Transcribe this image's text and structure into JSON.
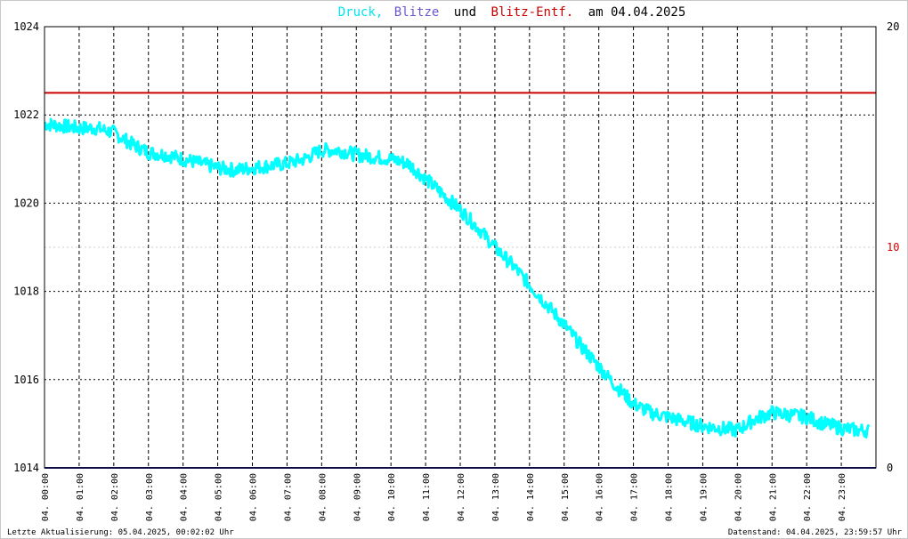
{
  "chart_data": {
    "type": "line",
    "title": {
      "parts": [
        {
          "text": "Druck,",
          "color": "#00e5ee"
        },
        {
          "text": "Blitze",
          "color": "#6a5acd"
        },
        {
          "text": "und",
          "color": "#000000"
        },
        {
          "text": "Blitz-Entf.",
          "color": "#cc0000"
        },
        {
          "text": "am 04.04.2025",
          "color": "#000000"
        }
      ]
    },
    "y_left": {
      "ticks": [
        "1014",
        "1016",
        "1018",
        "1020",
        "1022",
        "1024"
      ],
      "ylim": [
        1014,
        1024
      ]
    },
    "y_right": {
      "ticks": [
        "0",
        "10",
        "20"
      ],
      "ylim": [
        0,
        20
      ],
      "tick_colors": [
        "#000000",
        "#cc0000",
        "#000000"
      ]
    },
    "x_tick_labels": [
      "04. 00:00",
      "04. 01:00",
      "04. 02:00",
      "04. 03:00",
      "04. 04:00",
      "04. 05:00",
      "04. 06:00",
      "04. 07:00",
      "04. 08:00",
      "04. 09:00",
      "04. 10:00",
      "04. 11:00",
      "04. 12:00",
      "04. 13:00",
      "04. 14:00",
      "04. 15:00",
      "04. 16:00",
      "04. 17:00",
      "04. 18:00",
      "04. 19:00",
      "04. 20:00",
      "04. 21:00",
      "04. 22:00",
      "04. 23:00"
    ],
    "xlim_hours": [
      0,
      24
    ],
    "grid": true,
    "series": [
      {
        "name": "Druck",
        "color": "#00ffff",
        "x_hours": [
          0,
          0.5,
          1,
          1.5,
          2,
          2.5,
          3,
          3.5,
          4,
          4.5,
          5,
          5.5,
          6,
          6.5,
          7,
          7.5,
          8,
          8.5,
          9,
          9.5,
          10,
          10.5,
          11,
          11.5,
          12,
          12.5,
          13,
          13.5,
          14,
          14.5,
          15,
          15.5,
          16,
          16.5,
          17,
          17.5,
          18,
          18.5,
          19,
          19.5,
          20,
          20.5,
          21,
          21.5,
          22,
          22.5,
          23,
          23.5,
          23.8
        ],
        "values": [
          1021.8,
          1021.75,
          1021.7,
          1021.7,
          1021.6,
          1021.35,
          1021.15,
          1021.1,
          1021.0,
          1020.9,
          1020.8,
          1020.75,
          1020.8,
          1020.85,
          1020.9,
          1021.0,
          1021.2,
          1021.2,
          1021.1,
          1021.05,
          1021.0,
          1020.9,
          1020.55,
          1020.2,
          1019.85,
          1019.45,
          1019.0,
          1018.6,
          1018.15,
          1017.7,
          1017.25,
          1016.75,
          1016.3,
          1015.85,
          1015.45,
          1015.25,
          1015.15,
          1015.05,
          1014.95,
          1014.9,
          1014.85,
          1015.1,
          1015.25,
          1015.2,
          1015.15,
          1015.0,
          1014.9,
          1014.85,
          1014.85
        ]
      },
      {
        "name": "Blitze",
        "color": "#1a1a8c",
        "x_hours": [
          0,
          24
        ],
        "values_right": [
          0,
          0
        ]
      },
      {
        "name": "Blitz-Entf.",
        "color": "#cc0000",
        "x_hours": [
          0,
          24
        ],
        "values_right": [
          17,
          17
        ]
      }
    ]
  },
  "footer": {
    "left": "Letzte Aktualisierung: 05.04.2025, 00:02:02 Uhr",
    "right": "Datenstand: 04.04.2025, 23:59:57 Uhr"
  }
}
